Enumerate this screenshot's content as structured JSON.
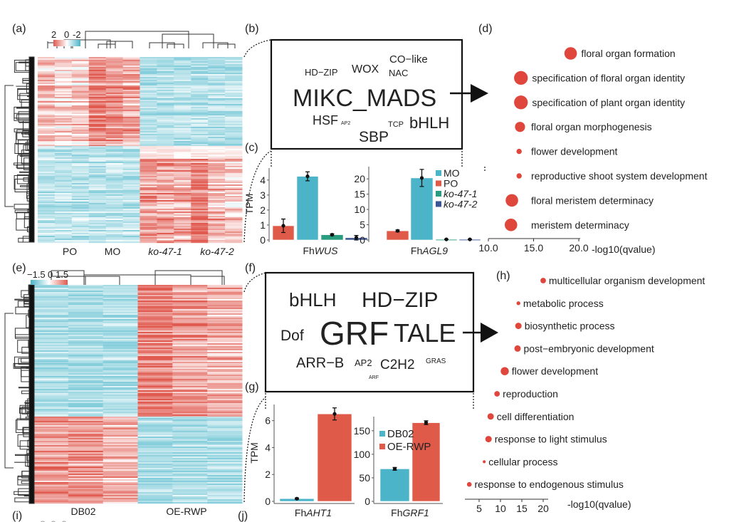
{
  "panel_labels": {
    "a": "(a)",
    "b": "(b)",
    "c": "(c)",
    "d": "(d)",
    "e": "(e)",
    "f": "(f)",
    "g": "(g)",
    "h": "(h)",
    "i": "(i)",
    "j": "(j)"
  },
  "colors": {
    "red": "#e05a50",
    "blue": "#4bb4c8",
    "light_blue": "#86cedb",
    "green": "#2a9d80",
    "navy": "#3d5494",
    "dot": "#e0473c"
  },
  "chart_data": [
    {
      "id": "a",
      "type": "heatmap",
      "columns": [
        "PO",
        "MO",
        "ko-47-1",
        "ko-47-2"
      ],
      "italic_columns": [
        "ko-47-1",
        "ko-47-2"
      ],
      "colorbar": {
        "ticks": [
          "2",
          "0",
          "-2"
        ],
        "range": [
          2,
          -2
        ]
      },
      "pattern": "upper cluster high in PO/MO, low in ko-47-1/ko-47-2; lower cluster reversed"
    },
    {
      "id": "c1",
      "type": "bar",
      "ylabel": "TPM",
      "xlabel_prefix": "Fh",
      "xlabel_gene": "WUS",
      "categories": [
        "PO",
        "MO",
        "ko-47-1",
        "ko-47-2"
      ],
      "values": [
        0.95,
        4.25,
        0.35,
        0.15
      ],
      "errors": [
        0.45,
        0.3,
        0.06,
        0.15
      ],
      "ylim": [
        0,
        4.8
      ],
      "yticks": [
        0,
        1,
        2,
        3,
        4
      ]
    },
    {
      "id": "c2",
      "type": "bar",
      "xlabel_prefix": "Fh",
      "xlabel_gene": "AGL9",
      "categories": [
        "PO",
        "MO",
        "ko-47-1",
        "ko-47-2"
      ],
      "values": [
        3.0,
        20.3,
        0.2,
        0.2
      ],
      "errors": [
        0.3,
        2.8,
        0.05,
        0.05
      ],
      "ylim": [
        0,
        24
      ],
      "yticks": [
        0,
        5,
        10,
        15,
        20
      ],
      "legend": [
        "MO",
        "PO",
        "ko-47-1",
        "ko-47-2"
      ],
      "legend_placement": "top-right"
    },
    {
      "id": "d",
      "type": "scatter",
      "xlabel": "-log10(qvalue)",
      "xticks": [
        "10.0",
        "15.0",
        "20.0"
      ],
      "xlim": [
        10,
        20
      ],
      "terms": [
        "floral organ formation",
        "specification of floral organ identity",
        "specification of plant organ identity",
        "floral organ morphogenesis",
        "flower development",
        "reproductive shoot system development",
        "floral meristem determinacy",
        "meristem determinacy"
      ],
      "values": [
        19.1,
        13.6,
        13.6,
        13.5,
        13.4,
        13.4,
        12.6,
        12.5
      ],
      "dot_size": [
        8,
        9,
        9,
        6,
        2,
        2,
        8,
        8
      ]
    },
    {
      "id": "e",
      "type": "heatmap",
      "columns": [
        "DB02",
        "OE-RWP"
      ],
      "colorbar": {
        "ticks": [
          "−1.5",
          "0",
          "1.5"
        ],
        "range": [
          -1.5,
          1.5
        ]
      },
      "pattern": "upper cluster low in DB02, high in OE-RWP; lower cluster reversed"
    },
    {
      "id": "g1",
      "type": "bar",
      "ylabel": "TPM",
      "xlabel_prefix": "Fh",
      "xlabel_gene": "AHT1",
      "categories": [
        "DB02",
        "OE-RWP"
      ],
      "values": [
        0.2,
        6.5
      ],
      "errors": [
        0.05,
        0.45
      ],
      "ylim": [
        0,
        7.2
      ],
      "yticks": [
        0,
        2,
        4,
        6
      ]
    },
    {
      "id": "g2",
      "type": "bar",
      "xlabel_prefix": "Fh",
      "xlabel_gene": "GRF1",
      "categories": [
        "DB02",
        "OE-RWP"
      ],
      "values": [
        69,
        167
      ],
      "errors": [
        3,
        4
      ],
      "ylim": [
        0,
        180
      ],
      "yticks": [
        0,
        50,
        100,
        150
      ],
      "legend": [
        "DB02",
        "OE-RWP"
      ],
      "legend_placement": "top-left"
    },
    {
      "id": "h",
      "type": "scatter",
      "xlabel": "-log10(qvalue)",
      "xticks": [
        "5",
        "10",
        "15",
        "20"
      ],
      "xlim": [
        3,
        21
      ],
      "terms": [
        "multicellular organism development",
        "metabolic process",
        "biosynthetic process",
        "post−embryonic development",
        "flower development",
        "reproduction",
        "cell differentiation",
        "response to light stimulus",
        "cellular process",
        "response to endogenous stimulus"
      ],
      "values": [
        20,
        14.2,
        14.2,
        14,
        11,
        9.2,
        7.7,
        7.2,
        6.2,
        2.7
      ],
      "dot_size": [
        4,
        2,
        5,
        5,
        7,
        4,
        5,
        5,
        1,
        3
      ]
    }
  ],
  "word_clouds": {
    "b": [
      {
        "word": "MIKC_MADS",
        "color": "#a8988a",
        "weight": 10
      },
      {
        "word": "HD−ZIP",
        "color": "#2aa084",
        "weight": 3
      },
      {
        "word": "WOX",
        "color": "#7a86b8",
        "weight": 4
      },
      {
        "word": "CO−like",
        "color": "#f0907a",
        "weight": 4
      },
      {
        "word": "NAC",
        "color": "#2b3f88",
        "weight": 3
      },
      {
        "word": "HSF",
        "color": "#6ccab0",
        "weight": 5
      },
      {
        "word": "AP2",
        "color": "#e8604c",
        "weight": 1
      },
      {
        "word": "TCP",
        "color": "#4bbcd0",
        "weight": 2
      },
      {
        "word": "bHLH",
        "color": "#705a48",
        "weight": 6
      },
      {
        "word": "SBP",
        "color": "#d42020",
        "weight": 6
      }
    ],
    "f": [
      {
        "word": "bHLH",
        "color": "#6cc4a8",
        "weight": 6
      },
      {
        "word": "HD−ZIP",
        "color": "#d42028",
        "weight": 8
      },
      {
        "word": "Dof",
        "color": "#7a86b8",
        "weight": 5
      },
      {
        "word": "GRF",
        "color": "#a8988a",
        "weight": 10
      },
      {
        "word": "TALE",
        "color": "#705a48",
        "weight": 9
      },
      {
        "word": "ARR−B",
        "color": "#f0907a",
        "weight": 5
      },
      {
        "word": "AP2",
        "color": "#2aa084",
        "weight": 3
      },
      {
        "word": "C2H2",
        "color": "#3a4f8a",
        "weight": 5
      },
      {
        "word": "GRAS",
        "color": "#4bbcd0",
        "weight": 2
      },
      {
        "word": "ARF",
        "color": "#e8604c",
        "weight": 1
      }
    ]
  }
}
